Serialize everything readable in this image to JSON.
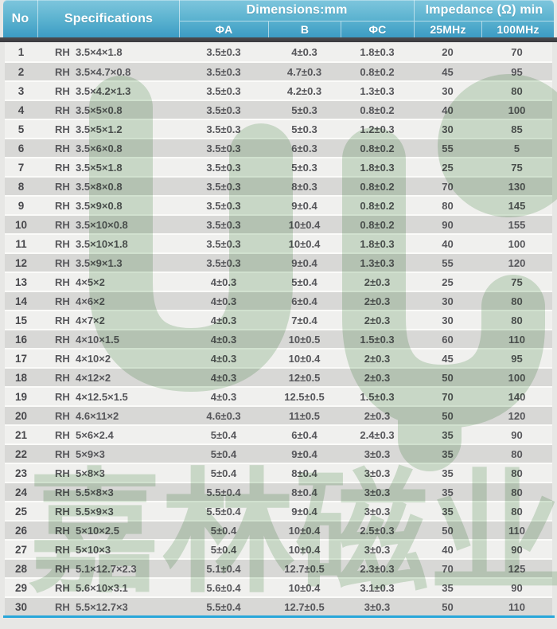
{
  "header": {
    "no": "No",
    "specifications": "Specifications",
    "dimensions_group": "Dimensions:mm",
    "impedance_group": "Impedance (Ω) min",
    "sub": {
      "phi_a": "ΦA",
      "b": "B",
      "phi_c": "ΦC",
      "mhz25": "25MHz",
      "mhz100": "100MHz"
    }
  },
  "table": {
    "columns": [
      "No",
      "Specifications",
      "ΦA",
      "B",
      "ΦC",
      "25MHz",
      "100MHz"
    ],
    "rows": [
      [
        "1",
        "RH  3.5×4×1.8",
        "3.5±0.3",
        "4±0.3",
        "1.8±0.3",
        "20",
        "70"
      ],
      [
        "2",
        "RH  3.5×4.7×0.8",
        "3.5±0.3",
        "4.7±0.3",
        "0.8±0.2",
        "45",
        "95"
      ],
      [
        "3",
        "RH  3.5×4.2×1.3",
        "3.5±0.3",
        "4.2±0.3",
        "1.3±0.3",
        "30",
        "80"
      ],
      [
        "4",
        "RH  3.5×5×0.8",
        "3.5±0.3",
        "5±0.3",
        "0.8±0.2",
        "40",
        "100"
      ],
      [
        "5",
        "RH  3.5×5×1.2",
        "3.5±0.3",
        "5±0.3",
        "1.2±0.3",
        "30",
        "85"
      ],
      [
        "6",
        "RH  3.5×6×0.8",
        "3.5±0.3",
        "6±0.3",
        "0.8±0.2",
        "55",
        "5"
      ],
      [
        "7",
        "RH  3.5×5×1.8",
        "3.5±0.3",
        "5±0.3",
        "1.8±0.3",
        "25",
        "75"
      ],
      [
        "8",
        "RH  3.5×8×0.8",
        "3.5±0.3",
        "8±0.3",
        "0.8±0.2",
        "70",
        "130"
      ],
      [
        "9",
        "RH  3.5×9×0.8",
        "3.5±0.3",
        "9±0.4",
        "0.8±0.2",
        "80",
        "145"
      ],
      [
        "10",
        "RH  3.5×10×0.8",
        "3.5±0.3",
        "10±0.4",
        "0.8±0.2",
        "90",
        "155"
      ],
      [
        "11",
        "RH  3.5×10×1.8",
        "3.5±0.3",
        "10±0.4",
        "1.8±0.3",
        "40",
        "100"
      ],
      [
        "12",
        "RH  3.5×9×1.3",
        "3.5±0.3",
        "9±0.4",
        "1.3±0.3",
        "55",
        "120"
      ],
      [
        "13",
        "RH  4×5×2",
        "4±0.3",
        "5±0.4",
        "2±0.3",
        "25",
        "75"
      ],
      [
        "14",
        "RH  4×6×2",
        "4±0.3",
        "6±0.4",
        "2±0.3",
        "30",
        "80"
      ],
      [
        "15",
        "RH  4×7×2",
        "4±0.3",
        "7±0.4",
        "2±0.3",
        "30",
        "80"
      ],
      [
        "16",
        "RH  4×10×1.5",
        "4±0.3",
        "10±0.5",
        "1.5±0.3",
        "60",
        "110"
      ],
      [
        "17",
        "RH  4×10×2",
        "4±0.3",
        "10±0.4",
        "2±0.3",
        "45",
        "95"
      ],
      [
        "18",
        "RH  4×12×2",
        "4±0.3",
        "12±0.5",
        "2±0.3",
        "50",
        "100"
      ],
      [
        "19",
        "RH  4×12.5×1.5",
        "4±0.3",
        "12.5±0.5",
        "1.5±0.3",
        "70",
        "140"
      ],
      [
        "20",
        "RH  4.6×11×2",
        "4.6±0.3",
        "11±0.5",
        "2±0.3",
        "50",
        "120"
      ],
      [
        "21",
        "RH  5×6×2.4",
        "5±0.4",
        "6±0.4",
        "2.4±0.3",
        "35",
        "90"
      ],
      [
        "22",
        "RH  5×9×3",
        "5±0.4",
        "9±0.4",
        "3±0.3",
        "35",
        "80"
      ],
      [
        "23",
        "RH  5×8×3",
        "5±0.4",
        "8±0.4",
        "3±0.3",
        "35",
        "80"
      ],
      [
        "24",
        "RH  5.5×8×3",
        "5.5±0.4",
        "8±0.4",
        "3±0.3",
        "35",
        "80"
      ],
      [
        "25",
        "RH  5.5×9×3",
        "5.5±0.4",
        "9±0.4",
        "3±0.3",
        "35",
        "80"
      ],
      [
        "26",
        "RH  5×10×2.5",
        "5±0.4",
        "10±0.4",
        "2.5±0.3",
        "50",
        "110"
      ],
      [
        "27",
        "RH  5×10×3",
        "5±0.4",
        "10±0.4",
        "3±0.3",
        "40",
        "90"
      ],
      [
        "28",
        "RH  5.1×12.7×2.3",
        "5.1±0.4",
        "12.7±0.5",
        "2.3±0.3",
        "70",
        "125"
      ],
      [
        "29",
        "RH  5.6×10×3.1",
        "5.6±0.4",
        "10±0.4",
        "3.1±0.3",
        "35",
        "90"
      ],
      [
        "30",
        "RH  5.5×12.7×3",
        "5.5±0.4",
        "12.7±0.5",
        "3±0.3",
        "50",
        "110"
      ]
    ]
  },
  "watermark": {
    "chars": [
      "嘉",
      "林",
      "磁",
      "业"
    ],
    "logo": "jl-leaf-logo"
  },
  "colors": {
    "header_gradient_top": "#7ec6dd",
    "header_gradient_bottom": "#3c9cc4",
    "dark_separator": "#3f3f43",
    "row_odd": "#f0f0ee",
    "row_even": "#d8d8d6",
    "bottom_accent_line": "#29a7da",
    "watermark_green": "#b2cfb0"
  }
}
